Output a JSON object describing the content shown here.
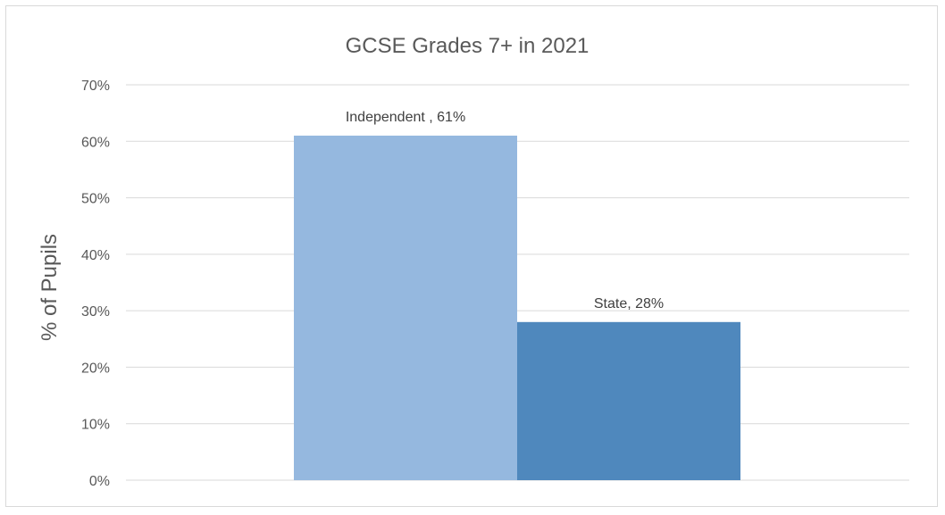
{
  "chart_data": {
    "type": "bar",
    "title": "GCSE Grades 7+ in 2021",
    "xlabel": "",
    "ylabel": "% of Pupils",
    "ylim": [
      0,
      70
    ],
    "y_ticks": [
      "0%",
      "10%",
      "20%",
      "30%",
      "40%",
      "50%",
      "60%",
      "70%"
    ],
    "y_tick_values": [
      0,
      10,
      20,
      30,
      40,
      50,
      60,
      70
    ],
    "grid": true,
    "legend": "none",
    "series": [
      {
        "name": "Independent",
        "value": 61,
        "label": "Independent , 61%",
        "color": "#95b8df"
      },
      {
        "name": "State",
        "value": 28,
        "label": "State, 28%",
        "color": "#4f88bd"
      }
    ]
  }
}
